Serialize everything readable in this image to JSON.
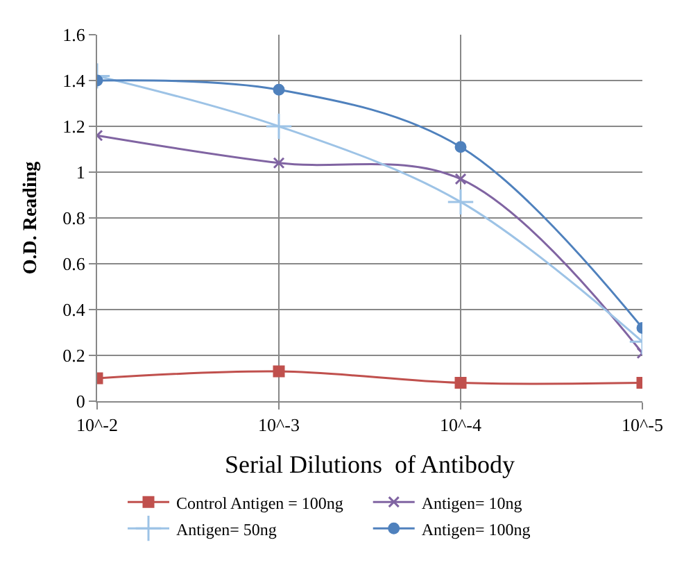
{
  "chart_data": {
    "type": "line",
    "xlabel": "Serial Dilutions  of Antibody",
    "ylabel": "O.D. Reading",
    "categories": [
      "10^-2",
      "10^-3",
      "10^-4",
      "10^-5"
    ],
    "series": [
      {
        "name": "Control Antigen = 100ng",
        "color": "#c0504d",
        "marker": "square",
        "values": [
          0.1,
          0.13,
          0.08,
          0.08
        ]
      },
      {
        "name": "Antigen= 10ng",
        "color": "#8064a2",
        "marker": "cross",
        "values": [
          1.16,
          1.04,
          0.97,
          0.21
        ]
      },
      {
        "name": "Antigen= 50ng",
        "color": "#9dc3e6",
        "marker": "cross",
        "values": [
          1.42,
          1.2,
          0.87,
          0.26
        ]
      },
      {
        "name": "Antigen= 100ng",
        "color": "#4f81bd",
        "marker": "circle",
        "values": [
          1.4,
          1.36,
          1.11,
          0.32
        ]
      }
    ],
    "ylim": [
      0,
      1.6
    ],
    "yticks": [
      0,
      0.2,
      0.4,
      0.6,
      0.8,
      1,
      1.2,
      1.4,
      1.6
    ],
    "grid": true,
    "legend": "bottom",
    "line_style": "solid"
  }
}
